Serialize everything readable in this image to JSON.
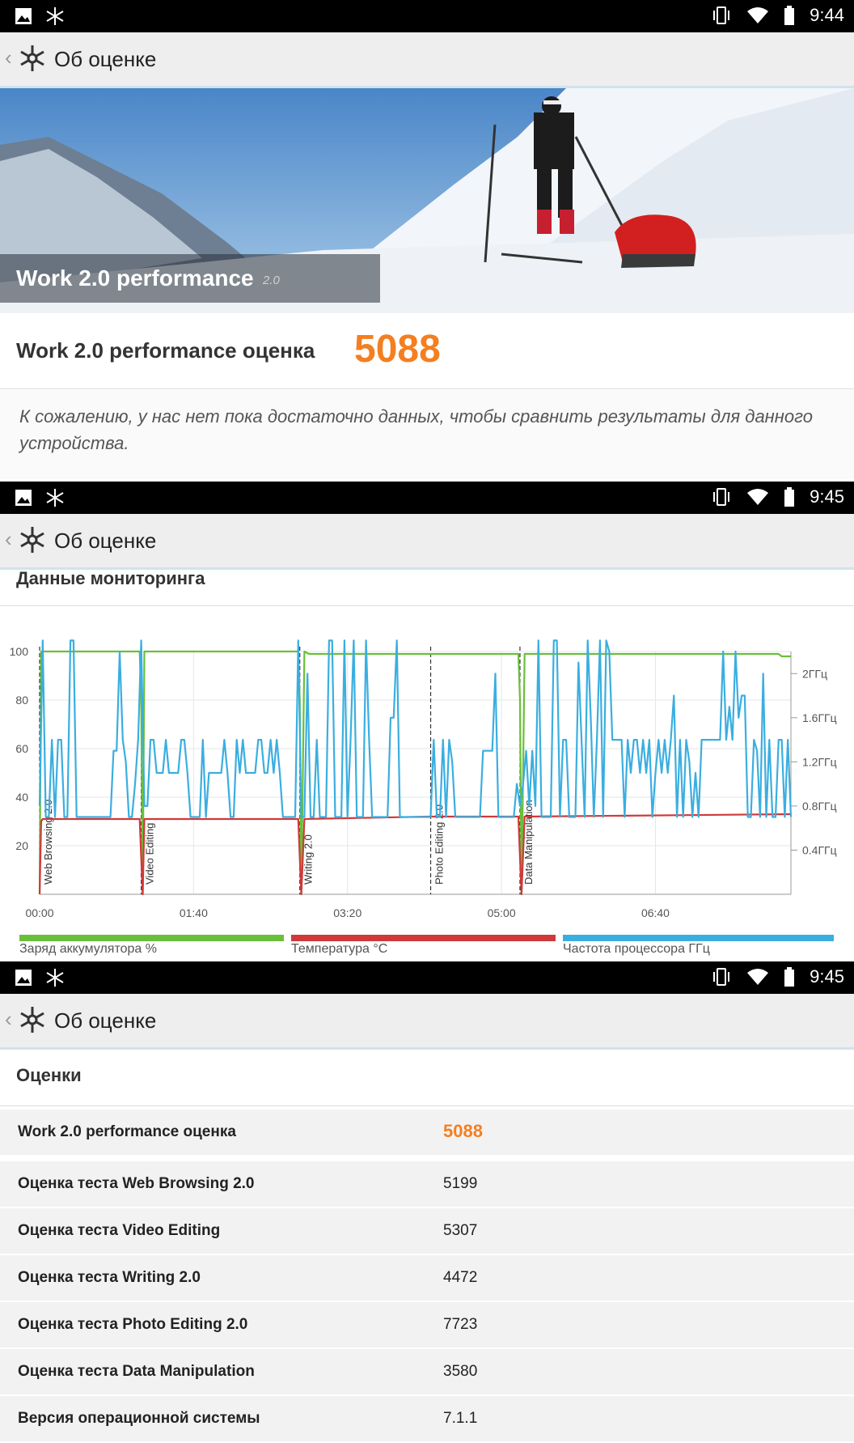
{
  "screens": [
    {
      "status": {
        "time": "9:44",
        "icons": [
          "image-icon",
          "snowflake-icon",
          "vibrate-icon",
          "wifi-icon",
          "battery-icon"
        ]
      },
      "appbar": {
        "title": "Об оценке",
        "back": "‹"
      }
    },
    {
      "status": {
        "time": "9:45",
        "icons": [
          "image-icon",
          "snowflake-icon",
          "vibrate-icon",
          "wifi-icon",
          "battery-icon"
        ]
      },
      "appbar": {
        "title": "Об оценке",
        "back": "‹"
      }
    },
    {
      "status": {
        "time": "9:45",
        "icons": [
          "image-icon",
          "snowflake-icon",
          "vibrate-icon",
          "wifi-icon",
          "battery-icon"
        ]
      },
      "appbar": {
        "title": "Об оценке",
        "back": "‹"
      }
    }
  ],
  "hero": {
    "title": "Work 2.0 performance",
    "version": "2.0"
  },
  "score": {
    "label": "Work 2.0 performance оценка",
    "value": "5088"
  },
  "note": "К сожалению, у нас нет пока достаточно данных, чтобы сравнить результаты для данного устройства.",
  "monitoring": {
    "title": "Данные мониторинга"
  },
  "chart_data": {
    "type": "line",
    "x_unit": "mm:ss",
    "xlim": [
      0,
      488
    ],
    "x_ticks": [
      "00:00",
      "01:40",
      "03:20",
      "05:00",
      "06:40"
    ],
    "y_left_ticks": [
      "20",
      "40",
      "60",
      "80",
      "100"
    ],
    "ylim": [
      0,
      100
    ],
    "y_right_ticks": [
      "0.4ГГц",
      "0.8ГГц",
      "1.2ГГц",
      "1.6ГГц",
      "2ГГц"
    ],
    "y_right_lim_ghz": [
      0,
      2.2
    ],
    "grid": true,
    "legend_position": "bottom",
    "markers": [
      {
        "label": "Web Browsing 2.0",
        "x": 0
      },
      {
        "label": "Video Editing",
        "x": 66
      },
      {
        "label": "Writing 2.0",
        "x": 169
      },
      {
        "label": "Photo Editing 2.0",
        "x": 254
      },
      {
        "label": "Data Manipulation",
        "x": 312
      }
    ],
    "series": [
      {
        "name": "Заряд аккумулятора %",
        "color": "#6abf3a",
        "x": [
          0,
          1,
          2,
          65,
          66,
          67,
          68,
          168,
          169,
          170,
          172,
          175,
          253,
          254,
          255,
          311,
          312,
          313,
          315,
          480,
          482,
          488
        ],
        "y": [
          0,
          100,
          100,
          100,
          80,
          0,
          100,
          100,
          80,
          0,
          100,
          99,
          99,
          99,
          99,
          99,
          80,
          0,
          99,
          99,
          98,
          98
        ]
      },
      {
        "name": "Температура °C",
        "color": "#d0393a",
        "x": [
          0,
          1,
          2,
          65,
          66,
          67,
          68,
          168,
          169,
          170,
          172,
          253,
          254,
          311,
          312,
          313,
          315,
          488
        ],
        "y": [
          0,
          30,
          31,
          31,
          15,
          0,
          31,
          31,
          15,
          0,
          31,
          32,
          32,
          32,
          15,
          0,
          32,
          33
        ]
      },
      {
        "name": "Частота процессора ГГц",
        "color": "#3aaee0",
        "x": [
          0,
          2,
          4,
          6,
          8,
          10,
          12,
          14,
          16,
          18,
          20,
          22,
          24,
          26,
          28,
          30,
          32,
          34,
          36,
          38,
          40,
          42,
          44,
          46,
          48,
          50,
          52,
          54,
          56,
          58,
          60,
          62,
          64,
          66,
          68,
          70,
          72,
          74,
          76,
          78,
          80,
          82,
          84,
          86,
          88,
          90,
          92,
          94,
          96,
          98,
          100,
          102,
          104,
          106,
          108,
          110,
          112,
          114,
          116,
          118,
          120,
          122,
          124,
          126,
          128,
          130,
          132,
          134,
          136,
          138,
          140,
          142,
          144,
          146,
          148,
          150,
          152,
          154,
          156,
          158,
          160,
          162,
          164,
          166,
          168,
          170,
          172,
          174,
          176,
          178,
          180,
          182,
          184,
          186,
          188,
          190,
          192,
          194,
          196,
          198,
          200,
          202,
          204,
          206,
          208,
          210,
          212,
          214,
          216,
          218,
          220,
          222,
          224,
          226,
          228,
          230,
          232,
          234,
          236,
          238,
          240,
          242,
          244,
          246,
          248,
          250,
          252,
          254,
          256,
          258,
          260,
          262,
          264,
          266,
          268,
          270,
          272,
          274,
          276,
          278,
          280,
          282,
          284,
          286,
          288,
          290,
          292,
          294,
          296,
          298,
          300,
          302,
          304,
          306,
          308,
          310,
          312,
          314,
          316,
          318,
          320,
          322,
          324,
          326,
          328,
          330,
          332,
          334,
          336,
          338,
          340,
          342,
          344,
          346,
          348,
          350,
          352,
          354,
          356,
          358,
          360,
          362,
          364,
          366,
          368,
          370,
          372,
          374,
          376,
          378,
          380,
          382,
          384,
          386,
          388,
          390,
          392,
          394,
          396,
          398,
          400,
          402,
          404,
          406,
          408,
          410,
          412,
          414,
          416,
          418,
          420,
          422,
          424,
          426,
          428,
          430,
          432,
          434,
          436,
          438,
          440,
          442,
          444,
          446,
          448,
          450,
          452,
          454,
          456,
          458,
          460,
          462,
          464,
          466,
          468,
          470,
          472,
          474,
          476,
          478,
          480,
          482,
          484,
          486,
          488
        ],
        "y": [
          0.8,
          2.3,
          0.7,
          0.7,
          1.4,
          0.7,
          1.4,
          1.4,
          0.7,
          0.7,
          2.3,
          2.3,
          0.7,
          0.7,
          0.7,
          0.7,
          0.7,
          0.7,
          0.7,
          0.7,
          0.7,
          0.7,
          0.7,
          0.7,
          1.3,
          1.3,
          2.2,
          1.4,
          1.2,
          0.7,
          0.7,
          1.0,
          1.4,
          2.3,
          0.8,
          0.8,
          1.4,
          1.4,
          1.1,
          1.1,
          1.1,
          1.4,
          1.1,
          1.1,
          1.1,
          1.1,
          1.4,
          1.4,
          1.1,
          0.7,
          0.7,
          0.7,
          0.7,
          1.4,
          0.7,
          1.1,
          1.1,
          1.1,
          1.1,
          1.1,
          1.4,
          1.1,
          0.7,
          0.7,
          1.4,
          1.1,
          1.4,
          1.1,
          1.1,
          1.1,
          1.1,
          1.4,
          1.4,
          1.1,
          1.1,
          1.4,
          1.1,
          1.4,
          1.1,
          0.7,
          0.7,
          0.7,
          0.7,
          0.7,
          2.3,
          0.7,
          0.7,
          2.0,
          0.7,
          0.7,
          1.4,
          0.7,
          0.7,
          0.7,
          2.3,
          2.3,
          0.7,
          0.7,
          0.7,
          2.3,
          0.7,
          1.4,
          2.3,
          0.7,
          0.7,
          0.7,
          2.3,
          1.4,
          0.7,
          0.7,
          0.7,
          0.7,
          0.7,
          0.7,
          1.6,
          1.6,
          2.3,
          0.7,
          0.7,
          0.7,
          0.7,
          0.7,
          0.7,
          0.7,
          0.7,
          0.7,
          0.7,
          0.7,
          1.4,
          0.7,
          0.7,
          1.4,
          0.7,
          1.4,
          1.2,
          0.7,
          0.7,
          0.7,
          0.7,
          0.7,
          0.7,
          0.7,
          0.7,
          0.7,
          1.3,
          1.3,
          1.3,
          1.3,
          2.0,
          0.7,
          0.7,
          0.7,
          0.7,
          0.7,
          0.7,
          1.0,
          0.8,
          1.0,
          1.3,
          0.8,
          1.3,
          0.8,
          2.3,
          0.7,
          0.7,
          0.7,
          0.7,
          2.3,
          2.3,
          0.7,
          1.4,
          1.4,
          0.7,
          0.7,
          0.7,
          2.1,
          1.4,
          0.7,
          2.3,
          1.6,
          0.7,
          1.4,
          2.3,
          0.7,
          2.3,
          2.2,
          1.4,
          1.4,
          1.4,
          1.4,
          0.7,
          1.4,
          1.1,
          1.4,
          1.4,
          1.1,
          1.4,
          1.1,
          1.4,
          0.7,
          1.1,
          1.4,
          1.1,
          1.4,
          1.1,
          1.4,
          1.8,
          0.7,
          1.4,
          0.7,
          1.4,
          1.2,
          0.7,
          1.1,
          0.7,
          1.4,
          1.4,
          1.4,
          1.4,
          1.4,
          1.4,
          1.4,
          2.2,
          1.4,
          1.7,
          1.4,
          2.2,
          1.6,
          1.8,
          1.8,
          0.7,
          0.7,
          1.4,
          1.3,
          0.7,
          2.0,
          0.7,
          1.4,
          0.7,
          0.7,
          1.4,
          1.4,
          0.7,
          1.4,
          0.7
        ]
      }
    ]
  },
  "scores": {
    "title": "Оценки",
    "rows": [
      {
        "k": "Work 2.0 performance оценка",
        "v": "5088"
      },
      {
        "k": "Оценка теста Web Browsing 2.0",
        "v": "5199"
      },
      {
        "k": "Оценка теста Video Editing",
        "v": "5307"
      },
      {
        "k": "Оценка теста Writing 2.0",
        "v": "4472"
      },
      {
        "k": "Оценка теста Photo Editing 2.0",
        "v": "7723"
      },
      {
        "k": "Оценка теста Data Manipulation",
        "v": "3580"
      },
      {
        "k": "Версия операционной системы",
        "v": "7.1.1"
      }
    ]
  }
}
